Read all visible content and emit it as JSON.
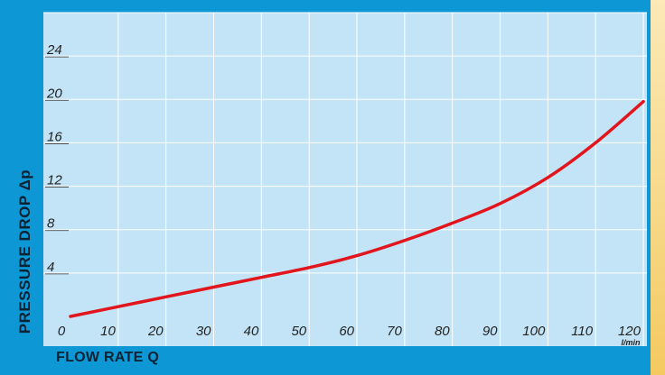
{
  "chart_data": {
    "type": "line",
    "xlabel": "FLOW RATE Q",
    "ylabel": "PRESSURE DROP Δp",
    "x_unit": "l/min",
    "x_ticks": [
      0,
      10,
      20,
      30,
      40,
      50,
      60,
      70,
      80,
      90,
      100,
      110,
      120
    ],
    "y_ticks": [
      4,
      8,
      12,
      16,
      20,
      24
    ],
    "xlim": [
      0,
      120
    ],
    "ylim": [
      0,
      28
    ],
    "grid": true,
    "colors": {
      "line": "#e2141c",
      "plot_bg": "#c3e4f6",
      "frame": "#0d97d5"
    },
    "series": [
      {
        "x": [
          0,
          10,
          20,
          30,
          40,
          50,
          60,
          70,
          80,
          90,
          100,
          110,
          120
        ],
        "y": [
          0,
          0.9,
          1.8,
          2.7,
          3.6,
          4.5,
          5.6,
          7.0,
          8.6,
          10.4,
          12.8,
          16.0,
          19.8
        ]
      }
    ]
  }
}
